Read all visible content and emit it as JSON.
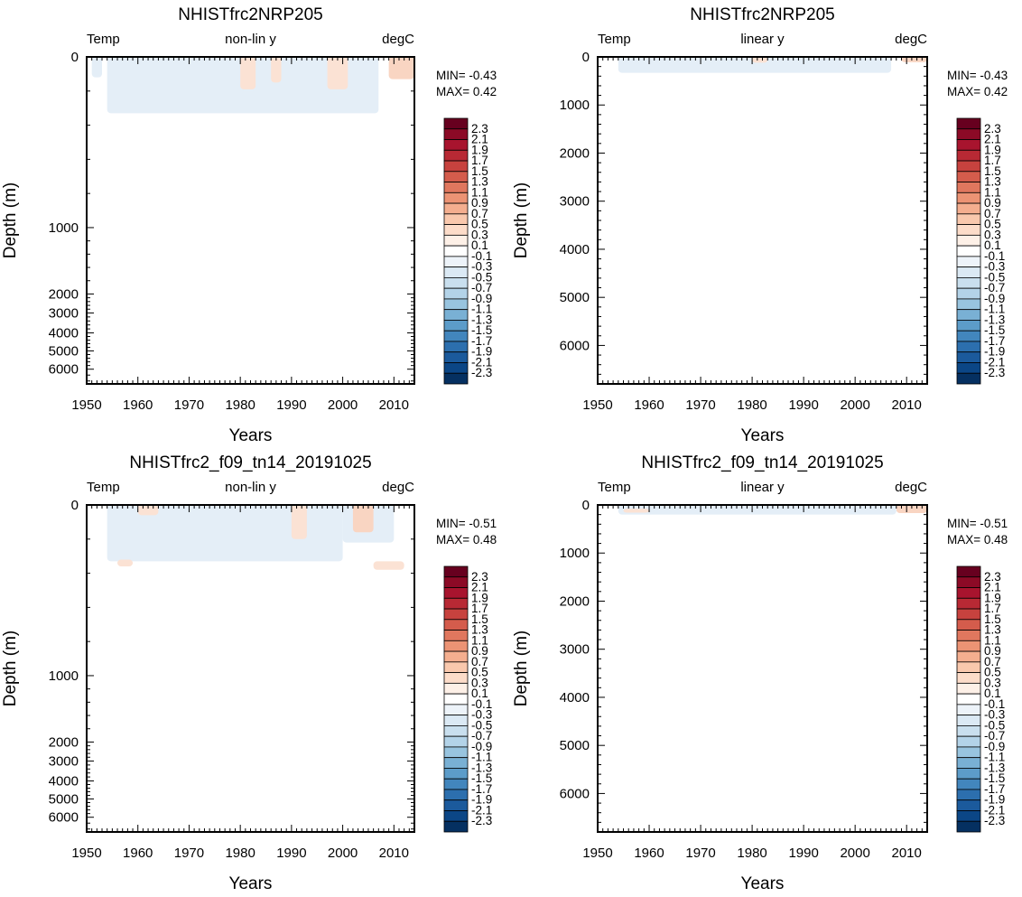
{
  "chart_data": [
    {
      "type": "heatmap",
      "title": "NHISTfrc2NRP205",
      "left_label": "Temp",
      "center_label": "non-lin y",
      "right_label": "degC",
      "xlabel": "Years",
      "ylabel": "Depth (m)",
      "xlim": [
        1950,
        2014
      ],
      "x_ticks": [
        "1950",
        "1960",
        "1970",
        "1980",
        "1990",
        "2000",
        "2010"
      ],
      "y_scale": "nonlinear",
      "y_ticks": [
        "0",
        "1000",
        "2000",
        "3000",
        "4000",
        "5000",
        "6000"
      ],
      "stats": {
        "min_text": "MIN= -0.43",
        "max_text": "MAX=  0.42",
        "min": -0.43,
        "max": 0.42
      },
      "fields": [
        {
          "sign": "neg",
          "color": "#e4eef7",
          "x0": 1954,
          "x1": 2007,
          "d0": 0,
          "d1": 330
        },
        {
          "sign": "neg",
          "color": "#e4eef7",
          "x0": 1951,
          "x1": 1953,
          "d0": 0,
          "d1": 120
        },
        {
          "sign": "pos",
          "color": "#fbe2d4",
          "x0": 1980,
          "x1": 1983,
          "d0": 0,
          "d1": 190
        },
        {
          "sign": "pos",
          "color": "#fbe2d4",
          "x0": 1986,
          "x1": 1988,
          "d0": 0,
          "d1": 150
        },
        {
          "sign": "pos",
          "color": "#fbe2d4",
          "x0": 1997,
          "x1": 2001,
          "d0": 0,
          "d1": 190
        },
        {
          "sign": "pos",
          "color": "#f9d5c2",
          "x0": 2009,
          "x1": 2014,
          "d0": 0,
          "d1": 130
        }
      ]
    },
    {
      "type": "heatmap",
      "title": "NHISTfrc2NRP205",
      "left_label": "Temp",
      "center_label": "linear y",
      "right_label": "degC",
      "xlabel": "Years",
      "ylabel": "Depth (m)",
      "xlim": [
        1950,
        2014
      ],
      "x_ticks": [
        "1950",
        "1960",
        "1970",
        "1980",
        "1990",
        "2000",
        "2010"
      ],
      "y_scale": "linear",
      "ylim": [
        0,
        6800
      ],
      "y_ticks": [
        "0",
        "1000",
        "2000",
        "3000",
        "4000",
        "5000",
        "6000"
      ],
      "stats": {
        "min_text": "MIN= -0.43",
        "max_text": "MAX=  0.42",
        "min": -0.43,
        "max": 0.42
      },
      "fields": [
        {
          "sign": "neg",
          "color": "#e4eef7",
          "x0": 1954,
          "x1": 2007,
          "d0": 0,
          "d1": 330
        },
        {
          "sign": "pos",
          "color": "#fbe2d4",
          "x0": 1980,
          "x1": 1983,
          "d0": 0,
          "d1": 120
        },
        {
          "sign": "pos",
          "color": "#f9d5c2",
          "x0": 2009,
          "x1": 2014,
          "d0": 0,
          "d1": 110
        }
      ]
    },
    {
      "type": "heatmap",
      "title": "NHISTfrc2_f09_tn14_20191025",
      "left_label": "Temp",
      "center_label": "non-lin y",
      "right_label": "degC",
      "xlabel": "Years",
      "ylabel": "Depth (m)",
      "xlim": [
        1950,
        2014
      ],
      "x_ticks": [
        "1950",
        "1960",
        "1970",
        "1980",
        "1990",
        "2000",
        "2010"
      ],
      "y_scale": "nonlinear",
      "y_ticks": [
        "0",
        "1000",
        "2000",
        "3000",
        "4000",
        "5000",
        "6000"
      ],
      "stats": {
        "min_text": "MIN= -0.51",
        "max_text": "MAX=  0.48",
        "min": -0.51,
        "max": 0.48
      },
      "fields": [
        {
          "sign": "neg",
          "color": "#e4eef7",
          "x0": 1954,
          "x1": 2000,
          "d0": 0,
          "d1": 330
        },
        {
          "sign": "neg",
          "color": "#e4eef7",
          "x0": 2000,
          "x1": 2010,
          "d0": 0,
          "d1": 220
        },
        {
          "sign": "pos",
          "color": "#fbe2d4",
          "x0": 1960,
          "x1": 1964,
          "d0": 0,
          "d1": 60
        },
        {
          "sign": "pos",
          "color": "#fbe2d4",
          "x0": 1990,
          "x1": 1993,
          "d0": 0,
          "d1": 200
        },
        {
          "sign": "pos",
          "color": "#f9d5c2",
          "x0": 2002,
          "x1": 2006,
          "d0": 0,
          "d1": 160
        },
        {
          "sign": "pos",
          "color": "#fbe2d4",
          "x0": 1956,
          "x1": 1959,
          "d0": 320,
          "d1": 360
        },
        {
          "sign": "pos",
          "color": "#fbe2d4",
          "x0": 2006,
          "x1": 2012,
          "d0": 330,
          "d1": 380
        }
      ]
    },
    {
      "type": "heatmap",
      "title": "NHISTfrc2_f09_tn14_20191025",
      "left_label": "Temp",
      "center_label": "linear y",
      "right_label": "degC",
      "xlabel": "Years",
      "ylabel": "Depth (m)",
      "xlim": [
        1950,
        2014
      ],
      "x_ticks": [
        "1950",
        "1960",
        "1970",
        "1980",
        "1990",
        "2000",
        "2010"
      ],
      "y_scale": "linear",
      "ylim": [
        0,
        6800
      ],
      "y_ticks": [
        "0",
        "1000",
        "2000",
        "3000",
        "4000",
        "5000",
        "6000"
      ],
      "stats": {
        "min_text": "MIN= -0.51",
        "max_text": "MAX=  0.48",
        "min": -0.51,
        "max": 0.48
      },
      "fields": [
        {
          "sign": "neg",
          "color": "#e4eef7",
          "x0": 1954,
          "x1": 2008,
          "d0": 0,
          "d1": 200
        },
        {
          "sign": "pos",
          "color": "#fbe2d4",
          "x0": 1955,
          "x1": 1960,
          "d0": 80,
          "d1": 160
        },
        {
          "sign": "pos",
          "color": "#f9d5c2",
          "x0": 2008,
          "x1": 2014,
          "d0": 0,
          "d1": 170
        }
      ]
    }
  ],
  "colorbar": {
    "labels": [
      "2.3",
      "2.1",
      "1.9",
      "1.7",
      "1.5",
      "1.3",
      "1.1",
      "0.9",
      "0.7",
      "0.5",
      "0.3",
      "0.1",
      "-0.1",
      "-0.3",
      "-0.5",
      "-0.7",
      "-0.9",
      "-1.1",
      "-1.3",
      "-1.5",
      "-1.7",
      "-1.9",
      "-2.1",
      "-2.3"
    ],
    "colors": [
      "#67001f",
      "#8c0a26",
      "#a8142e",
      "#b82934",
      "#c7423e",
      "#d45c4c",
      "#e0775e",
      "#ec9374",
      "#f4ae8f",
      "#f9c8ad",
      "#fcdcc9",
      "#fdf0e7",
      "#ffffff",
      "#edf3f9",
      "#dbe9f4",
      "#c9dfee",
      "#b3d3e8",
      "#98c4df",
      "#79b0d4",
      "#5c9cc9",
      "#4286bd",
      "#2c6fae",
      "#1b5a9c",
      "#0b4686",
      "#053061"
    ]
  }
}
